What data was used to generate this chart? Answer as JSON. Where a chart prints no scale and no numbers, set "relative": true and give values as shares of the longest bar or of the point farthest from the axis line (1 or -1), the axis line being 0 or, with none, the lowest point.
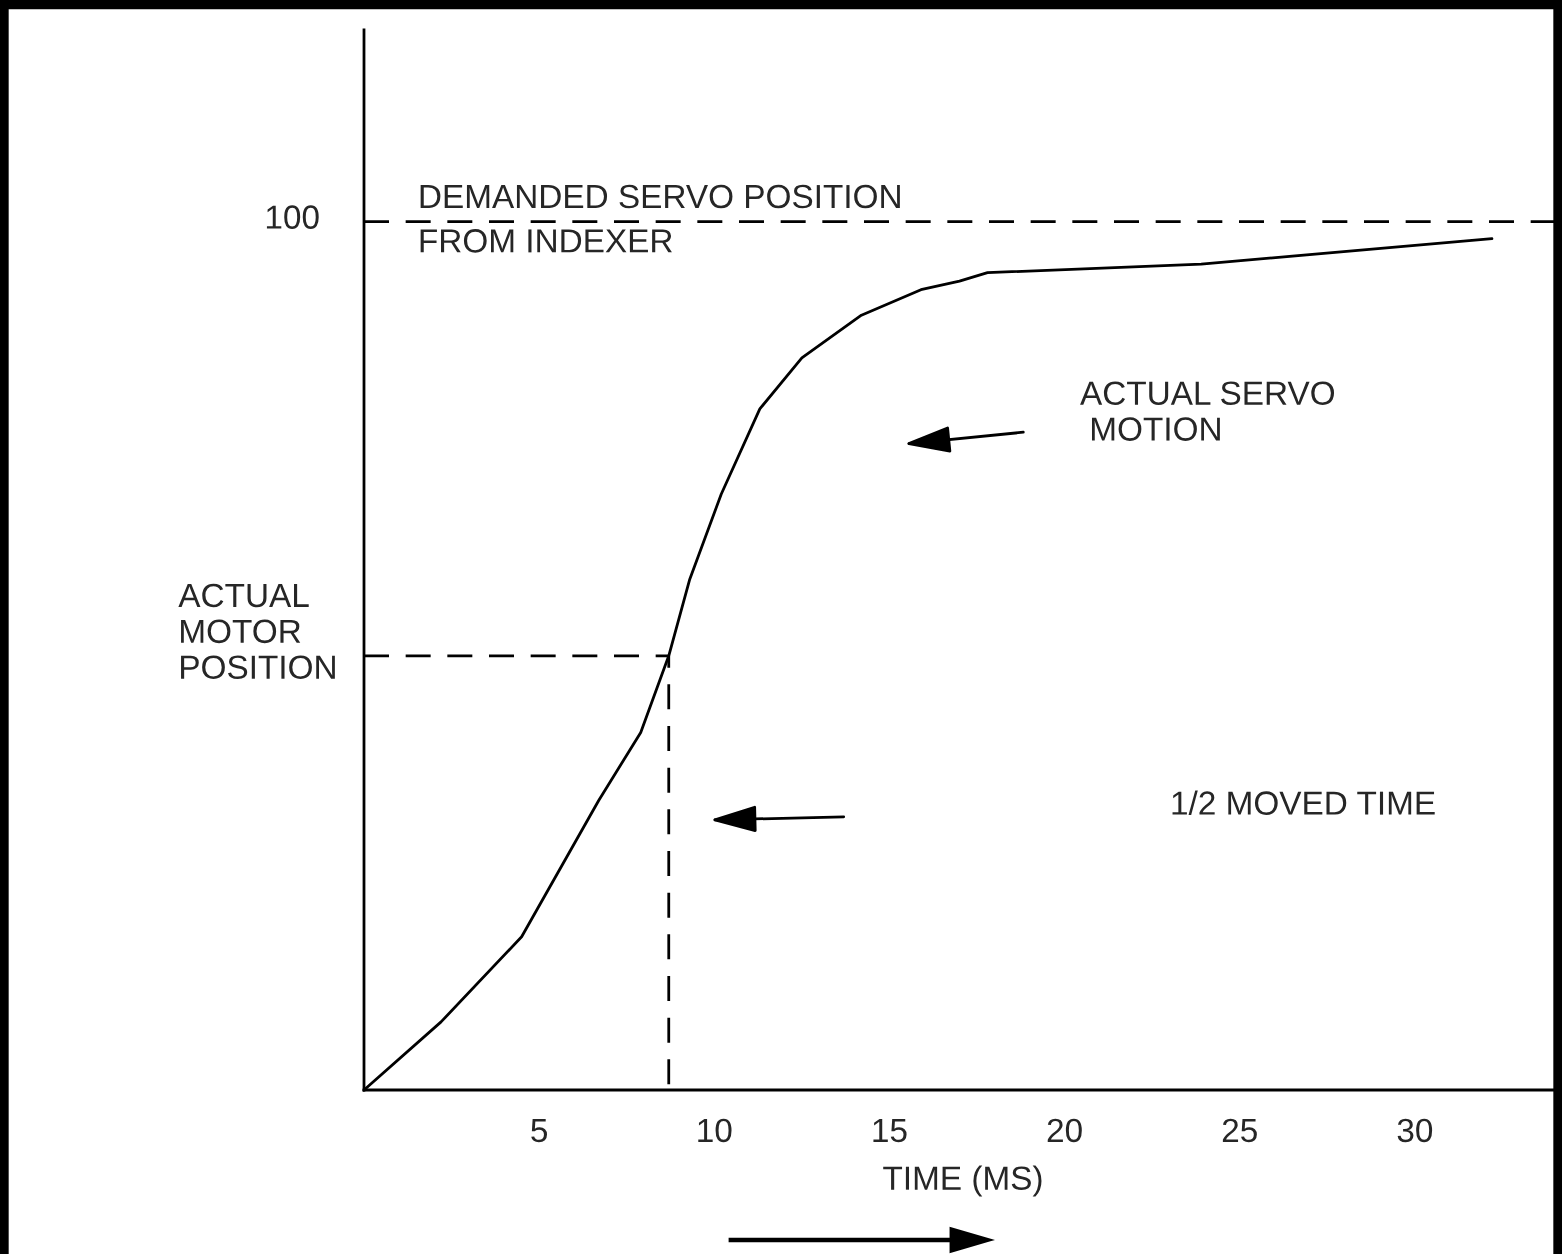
{
  "chart_data": {
    "type": "line",
    "relative": true,
    "xlabel": "TIME (MS)",
    "ylabel": "ACTUAL\nMOTOR\nPOSITION",
    "series": [
      {
        "color": "#000000",
        "line_style": "solid",
        "x": [
          0,
          2.2,
          4.5,
          6.7,
          7.9,
          8.7,
          9.3,
          10.2,
          11.3,
          12.5,
          14.2,
          15.9,
          17.0,
          17.8,
          23.9,
          32.2
        ],
        "values": [
          0,
          0.08,
          0.18,
          0.34,
          0.42,
          0.51,
          0.6,
          0.7,
          0.8,
          0.86,
          0.91,
          0.94,
          0.95,
          0.96,
          0.97,
          1
        ]
      },
      {
        "color": "#000000",
        "line_style": "dashed",
        "x": [
          0,
          8.7,
          8.7
        ],
        "values": [
          0.51,
          0.51,
          0
        ]
      }
    ],
    "ref_lines": [
      {
        "axis": "y",
        "value": 1.02,
        "label": "DEMANDED SERVO POSITION\nFROM INDEXER",
        "color": "#000000",
        "line_style": "dashed"
      }
    ],
    "annotations": [
      "ACTUAL SERVO\n MOTION",
      "1/2 MOVED TIME",
      "100"
    ],
    "xlim": [
      0,
      34.2
    ],
    "xticks": [
      5,
      10,
      15,
      20,
      25,
      30
    ],
    "grid": false,
    "legend": false
  }
}
